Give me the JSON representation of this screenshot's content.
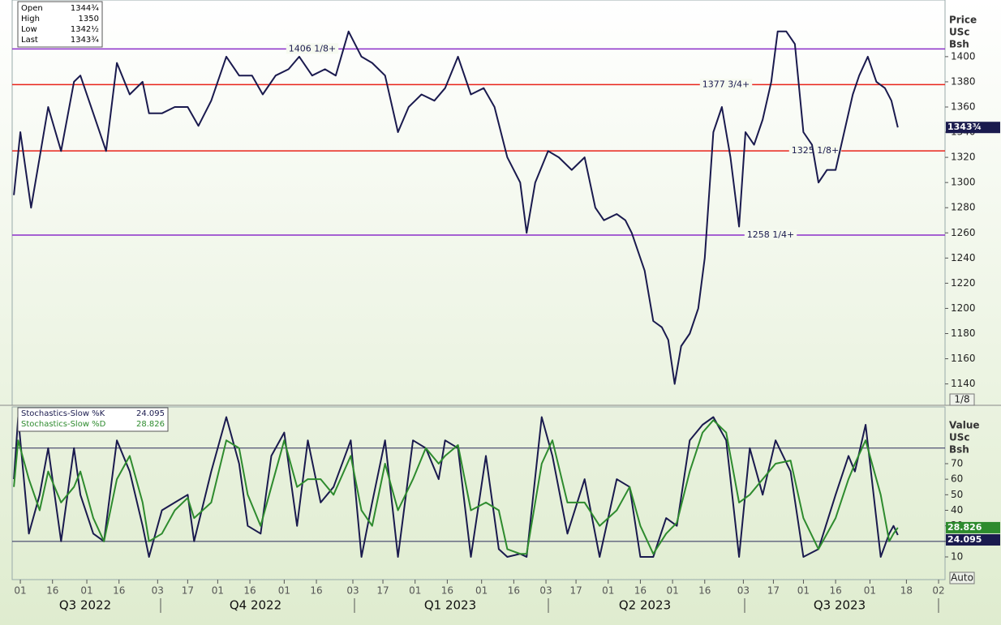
{
  "chart_data": [
    {
      "type": "line",
      "info": {
        "labels": [
          "Open",
          "High",
          "Low",
          "Last"
        ],
        "values": [
          "1344¾",
          "1350",
          "1342½",
          "1343¾"
        ]
      },
      "axis_header": [
        "Price",
        "USc",
        "Bsh"
      ],
      "axis_button": "1/8",
      "xlim": [
        -3.8,
        431
      ],
      "ylim": [
        1123,
        1445
      ],
      "yticks": [
        1140,
        1160,
        1180,
        1200,
        1220,
        1240,
        1260,
        1280,
        1300,
        1320,
        1340,
        1360,
        1380,
        1400
      ],
      "x": [
        -3,
        0,
        5,
        9,
        13,
        19,
        25,
        28,
        34,
        40,
        45,
        51,
        57,
        60,
        66,
        72,
        78,
        83,
        89,
        96,
        102,
        108,
        113,
        119,
        125,
        130,
        136,
        142,
        147,
        153,
        159,
        164,
        170,
        176,
        181,
        187,
        193,
        198,
        204,
        210,
        216,
        221,
        227,
        233,
        236,
        240,
        246,
        251,
        257,
        263,
        268,
        272,
        278,
        282,
        285,
        291,
        295,
        299,
        302,
        305,
        308,
        312,
        316,
        319,
        323,
        327,
        331,
        335,
        338,
        342,
        346,
        350,
        353,
        357,
        361,
        365,
        369,
        372,
        376,
        380,
        384,
        388,
        391,
        395,
        399,
        403,
        406,
        409
      ],
      "series": [
        {
          "name": "Price",
          "color": "#1a1a4e",
          "values": [
            1290,
            1340,
            1280,
            1320,
            1360,
            1325,
            1380,
            1385,
            1355,
            1325,
            1395,
            1370,
            1380,
            1355,
            1355,
            1360,
            1360,
            1345,
            1365,
            1400,
            1385,
            1385,
            1370,
            1385,
            1390,
            1400,
            1385,
            1390,
            1385,
            1420,
            1400,
            1395,
            1385,
            1340,
            1360,
            1370,
            1365,
            1375,
            1400,
            1370,
            1375,
            1360,
            1320,
            1300,
            1260,
            1300,
            1325,
            1320,
            1310,
            1320,
            1280,
            1270,
            1275,
            1270,
            1260,
            1230,
            1190,
            1185,
            1175,
            1140,
            1170,
            1180,
            1200,
            1240,
            1340,
            1360,
            1320,
            1265,
            1340,
            1330,
            1350,
            1380,
            1420,
            1420,
            1410,
            1340,
            1330,
            1300,
            1310,
            1310,
            1340,
            1370,
            1385,
            1400,
            1380,
            1375,
            1365,
            1343.75
          ]
        }
      ],
      "levels": [
        {
          "value": 1406.125,
          "label": "1406 1/8+",
          "color": "#8b2fc9"
        },
        {
          "value": 1377.75,
          "label": "1377 3/4+",
          "color": "#e8231a"
        },
        {
          "value": 1325.125,
          "label": "1325 1/8+",
          "color": "#e8231a"
        },
        {
          "value": 1258.25,
          "label": "1258 1/4+",
          "color": "#8b2fc9"
        }
      ]
    },
    {
      "type": "line",
      "axis_header": [
        "Value",
        "USc",
        "Bsh"
      ],
      "axis_button": "Auto",
      "xlim": [
        -3.8,
        431
      ],
      "ylim": [
        -4.6,
        106.5
      ],
      "yticks": [
        10,
        20,
        30,
        40,
        50,
        60,
        70
      ],
      "levels": [
        20,
        80
      ],
      "xticks": [
        {
          "value": 0,
          "label": "01"
        },
        {
          "value": 15,
          "label": "16"
        },
        {
          "value": 31,
          "label": "01"
        },
        {
          "value": 46,
          "label": "16"
        },
        {
          "value": 64,
          "label": "03"
        },
        {
          "value": 78,
          "label": "17"
        },
        {
          "value": 92,
          "label": "01"
        },
        {
          "value": 107,
          "label": "16"
        },
        {
          "value": 123,
          "label": "01"
        },
        {
          "value": 138,
          "label": "16"
        },
        {
          "value": 155,
          "label": "03"
        },
        {
          "value": 169,
          "label": "17"
        },
        {
          "value": 184,
          "label": "01"
        },
        {
          "value": 199,
          "label": "16"
        },
        {
          "value": 215,
          "label": "01"
        },
        {
          "value": 230,
          "label": "16"
        },
        {
          "value": 245,
          "label": "03"
        },
        {
          "value": 259,
          "label": "17"
        },
        {
          "value": 274,
          "label": "01"
        },
        {
          "value": 289,
          "label": "16"
        },
        {
          "value": 304,
          "label": "01"
        },
        {
          "value": 319,
          "label": "16"
        },
        {
          "value": 337,
          "label": "03"
        },
        {
          "value": 351,
          "label": "17"
        },
        {
          "value": 365,
          "label": "01"
        },
        {
          "value": 380,
          "label": "16"
        },
        {
          "value": 396,
          "label": "01"
        },
        {
          "value": 413,
          "label": "18"
        },
        {
          "value": 428,
          "label": "02"
        }
      ],
      "quarters": [
        "Q3 2022",
        "Q4 2022",
        "Q1 2023",
        "Q2 2023",
        "Q3 2023"
      ],
      "x": [
        -3,
        -1,
        4,
        9,
        13,
        19,
        25,
        28,
        34,
        39,
        45,
        51,
        57,
        60,
        66,
        72,
        78,
        81,
        89,
        96,
        102,
        106,
        112,
        117,
        123,
        129,
        134,
        140,
        146,
        154,
        159,
        164,
        170,
        176,
        183,
        189,
        195,
        198,
        204,
        210,
        217,
        223,
        227,
        233,
        236,
        243,
        248,
        255,
        263,
        270,
        278,
        284,
        289,
        295,
        301,
        306,
        312,
        318,
        323,
        329,
        335,
        340,
        346,
        352,
        359,
        365,
        372,
        380,
        386,
        389,
        394,
        401,
        405,
        407,
        409
      ],
      "series": [
        {
          "name": "Stochastics-Slow %K",
          "color": "#1a1a4e",
          "values": [
            60,
            100,
            25,
            50,
            80,
            20,
            80,
            50,
            25,
            20,
            85,
            65,
            30,
            10,
            40,
            45,
            50,
            20,
            65,
            100,
            70,
            30,
            25,
            75,
            90,
            30,
            85,
            45,
            55,
            85,
            10,
            45,
            85,
            10,
            85,
            80,
            60,
            85,
            80,
            10,
            75,
            15,
            10,
            12,
            10,
            100,
            75,
            25,
            60,
            10,
            60,
            55,
            10,
            10,
            35,
            30,
            85,
            95,
            100,
            85,
            10,
            80,
            50,
            85,
            65,
            10,
            15,
            50,
            75,
            65,
            95,
            10,
            25,
            30,
            24.095
          ]
        },
        {
          "name": "Stochastics-Slow %D",
          "color": "#2e8b2e",
          "values": [
            55,
            85,
            60,
            40,
            65,
            45,
            55,
            65,
            35,
            20,
            60,
            75,
            45,
            20,
            25,
            40,
            48,
            35,
            45,
            85,
            80,
            50,
            30,
            55,
            85,
            55,
            60,
            60,
            50,
            75,
            40,
            30,
            70,
            40,
            60,
            80,
            70,
            75,
            82,
            40,
            45,
            40,
            15,
            12,
            12,
            70,
            85,
            45,
            45,
            30,
            40,
            55,
            30,
            12,
            25,
            32,
            65,
            90,
            98,
            90,
            45,
            50,
            60,
            70,
            72,
            35,
            15,
            35,
            60,
            70,
            85,
            50,
            20,
            25,
            28.826
          ]
        }
      ]
    }
  ]
}
